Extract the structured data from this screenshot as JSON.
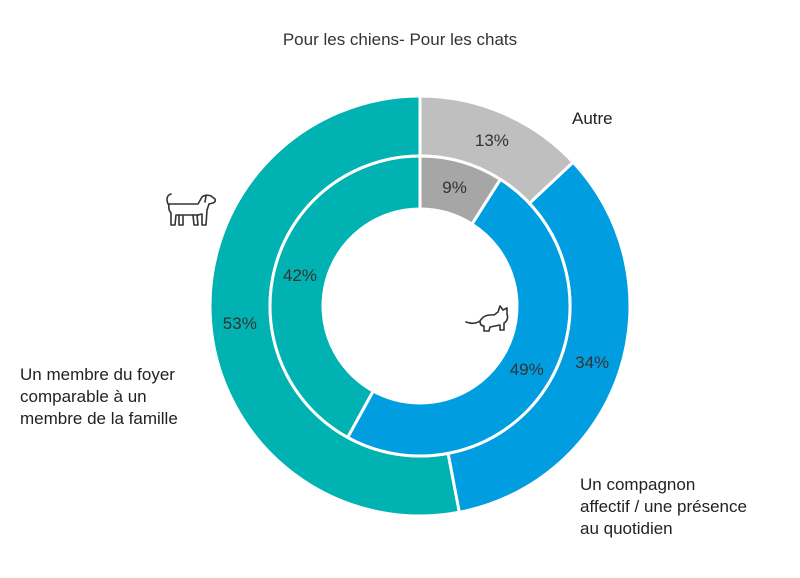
{
  "chart_data": {
    "type": "donut",
    "title": "Pour les chiens- Pour les chats",
    "categories": [
      "Un membre du foyer comparable à un membre de la famille",
      "Un compagnon affectif / une présence au quotidien",
      "Autre"
    ],
    "series": [
      {
        "values": [
          53,
          34,
          13
        ],
        "labels": [
          "53%",
          "34%",
          "13%"
        ]
      },
      {
        "values": [
          42,
          49,
          9
        ],
        "labels": [
          "42%",
          "49%",
          "9%"
        ]
      }
    ],
    "series_icons": [
      "dog-icon",
      "cat-icon"
    ],
    "ring_order": [
      "outer",
      "inner"
    ],
    "colors": {
      "outer": [
        "#00b2b2",
        "#009de0",
        "#bfbfbf"
      ],
      "inner": [
        "#00b2b2",
        "#009de0",
        "#a6a6a6"
      ],
      "separator": "#ffffff",
      "label_text": "#333333"
    }
  },
  "labels": {
    "other_lines": [
      "Autre"
    ],
    "family_lines": [
      "Un membre du foyer",
      "comparable à un",
      "membre de la famille"
    ],
    "companion_lines": [
      "Un compagnon",
      "affectif / une présence",
      "au quotidien"
    ]
  }
}
